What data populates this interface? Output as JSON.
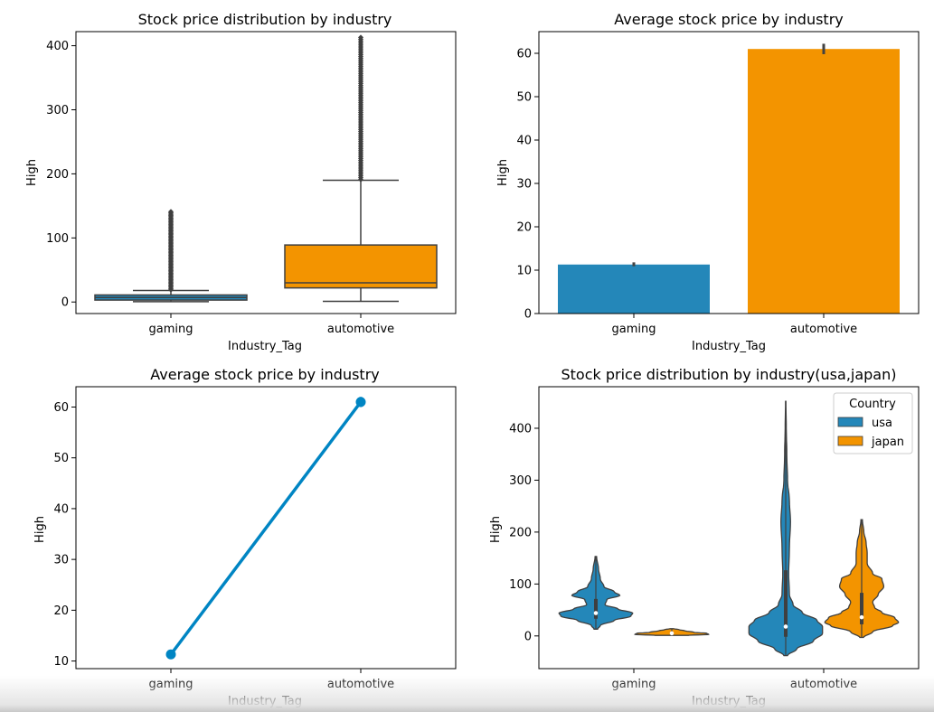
{
  "colors": {
    "gaming": "#2487b9",
    "automotive": "#f39400",
    "usa": "#2487b9",
    "japan": "#f39400",
    "line": "#0085c3",
    "edge": "#3f3f3f"
  },
  "chart_data": [
    {
      "type": "box",
      "title": "Stock price distribution by industry",
      "xlabel": "Industry_Tag",
      "ylabel": "High",
      "categories": [
        "gaming",
        "automotive"
      ],
      "ylim": [
        -18,
        422
      ],
      "yticks": [
        0,
        100,
        200,
        300,
        400
      ],
      "boxes": [
        {
          "name": "gaming",
          "min": 0.5,
          "q1": 3,
          "median": 7,
          "q3": 11,
          "max": 18,
          "outliers_range": [
            19,
            141
          ]
        },
        {
          "name": "automotive",
          "min": 1,
          "q1": 22,
          "median": 30,
          "q3": 89,
          "max": 190,
          "outliers_range": [
            191,
            414
          ]
        }
      ]
    },
    {
      "type": "bar",
      "title": "Average stock price by industry",
      "xlabel": "Industry_Tag",
      "ylabel": "High",
      "categories": [
        "gaming",
        "automotive"
      ],
      "values": [
        11.3,
        61.0
      ],
      "error": [
        [
          10.9,
          11.8
        ],
        [
          59.8,
          62.2
        ]
      ],
      "ylim": [
        0,
        65
      ],
      "yticks": [
        0,
        10,
        20,
        30,
        40,
        50,
        60
      ]
    },
    {
      "type": "line",
      "title": "Average stock price by industry",
      "xlabel": "Industry_Tag",
      "ylabel": "High",
      "categories": [
        "gaming",
        "automotive"
      ],
      "values": [
        11.3,
        61.0
      ],
      "error": [
        [
          10.9,
          11.8
        ],
        [
          60.0,
          62.0
        ]
      ],
      "ylim": [
        8.5,
        64
      ],
      "yticks": [
        10,
        20,
        30,
        40,
        50,
        60
      ]
    },
    {
      "type": "violin",
      "title": "Stock price distribution by industry(usa,japan)",
      "xlabel": "Industry_Tag",
      "ylabel": "High",
      "categories": [
        "gaming",
        "automotive"
      ],
      "ylim": [
        -63,
        480
      ],
      "yticks": [
        0,
        100,
        200,
        300,
        400
      ],
      "legend": {
        "title": "Country",
        "placement": "top-right",
        "entries": [
          "usa",
          "japan"
        ]
      },
      "series": [
        {
          "name": "usa",
          "category": "gaming",
          "min": 13,
          "max": 153,
          "median": 44,
          "profile": [
            [
              13,
              0.05
            ],
            [
              20,
              0.12
            ],
            [
              30,
              0.5
            ],
            [
              38,
              0.95
            ],
            [
              44,
              1.0
            ],
            [
              52,
              0.6
            ],
            [
              60,
              0.25
            ],
            [
              70,
              0.3
            ],
            [
              78,
              0.65
            ],
            [
              85,
              0.5
            ],
            [
              95,
              0.22
            ],
            [
              110,
              0.12
            ],
            [
              130,
              0.07
            ],
            [
              153,
              0.02
            ]
          ]
        },
        {
          "name": "japan",
          "category": "gaming",
          "min": 1,
          "max": 14,
          "median": 5,
          "profile": [
            [
              1,
              0.45
            ],
            [
              3,
              1.0
            ],
            [
              5,
              0.95
            ],
            [
              7,
              0.6
            ],
            [
              10,
              0.35
            ],
            [
              12,
              0.2
            ],
            [
              14,
              0.05
            ]
          ]
        },
        {
          "name": "usa",
          "category": "automotive",
          "min": -38,
          "max": 452,
          "median": 18,
          "profile": [
            [
              -38,
              0.05
            ],
            [
              -25,
              0.3
            ],
            [
              -10,
              0.75
            ],
            [
              5,
              1.0
            ],
            [
              18,
              1.0
            ],
            [
              30,
              0.85
            ],
            [
              45,
              0.45
            ],
            [
              60,
              0.2
            ],
            [
              80,
              0.1
            ],
            [
              120,
              0.08
            ],
            [
              170,
              0.1
            ],
            [
              220,
              0.13
            ],
            [
              260,
              0.1
            ],
            [
              300,
              0.05
            ],
            [
              350,
              0.03
            ],
            [
              400,
              0.015
            ],
            [
              452,
              0.005
            ]
          ]
        },
        {
          "name": "japan",
          "category": "automotive",
          "min": -3,
          "max": 224,
          "median": 36,
          "profile": [
            [
              -3,
              0.05
            ],
            [
              8,
              0.3
            ],
            [
              20,
              0.85
            ],
            [
              26,
              1.0
            ],
            [
              35,
              0.9
            ],
            [
              45,
              0.55
            ],
            [
              55,
              0.35
            ],
            [
              65,
              0.3
            ],
            [
              80,
              0.45
            ],
            [
              95,
              0.6
            ],
            [
              110,
              0.55
            ],
            [
              120,
              0.3
            ],
            [
              140,
              0.15
            ],
            [
              160,
              0.15
            ],
            [
              180,
              0.12
            ],
            [
              200,
              0.06
            ],
            [
              224,
              0.02
            ]
          ]
        }
      ]
    }
  ]
}
